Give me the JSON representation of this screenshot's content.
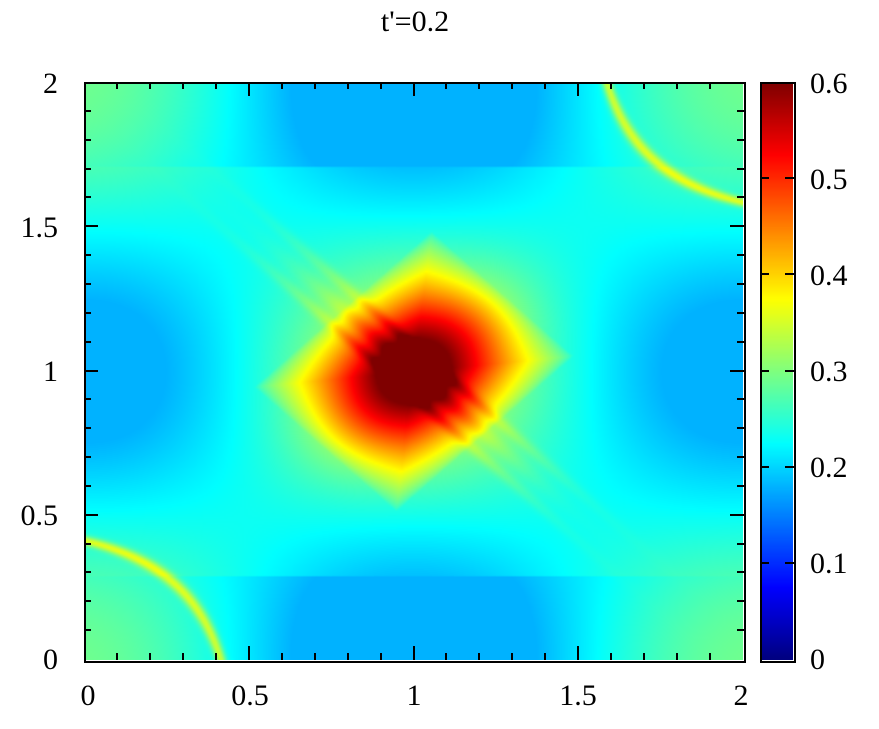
{
  "chart_data": {
    "type": "heatmap",
    "title": "t'=0.2",
    "xlabel": "",
    "ylabel": "",
    "xlim": [
      0,
      2
    ],
    "ylim": [
      0,
      2
    ],
    "x_ticks": [
      "0",
      "0.5",
      "1",
      "1.5",
      "2"
    ],
    "y_ticks": [
      "0",
      "0.5",
      "1",
      "1.5",
      "2"
    ],
    "colorbar": {
      "range": [
        0,
        0.6
      ],
      "ticks": [
        "0",
        "0.1",
        "0.2",
        "0.3",
        "0.4",
        "0.5",
        "0.6"
      ],
      "colormap": "jet",
      "stops": [
        "#00007f",
        "#0000ff",
        "#007fff",
        "#00ffff",
        "#7fff7f",
        "#ffff00",
        "#ff7f00",
        "#ff0000",
        "#7f0000"
      ]
    },
    "description": "Symmetric X-shaped pattern: maximum (~0.6) at center (1,1) with a dark-red diagonal band from upper-left to lower-right; yellow (~0.35-0.4) hyperbolic arcs forming an X crossing near (0.27,0.27) and (1.73,1.73); minima (~0.2) near (0,1), (2,1), (1,0), (1,2).",
    "features": {
      "peak": {
        "x": 1.0,
        "y": 1.0,
        "value": 0.6
      },
      "minima": [
        {
          "x": 0.0,
          "y": 1.0,
          "value": 0.2
        },
        {
          "x": 2.0,
          "y": 1.0,
          "value": 0.2
        },
        {
          "x": 1.0,
          "y": 0.0,
          "value": 0.2
        },
        {
          "x": 1.0,
          "y": 2.0,
          "value": 0.2
        }
      ],
      "arc_crossings": [
        {
          "x": 0.27,
          "y": 0.27,
          "value": 0.36
        },
        {
          "x": 1.73,
          "y": 1.73,
          "value": 0.36
        }
      ],
      "background_value": 0.25
    },
    "grid": false,
    "legend": "colorbar right"
  }
}
